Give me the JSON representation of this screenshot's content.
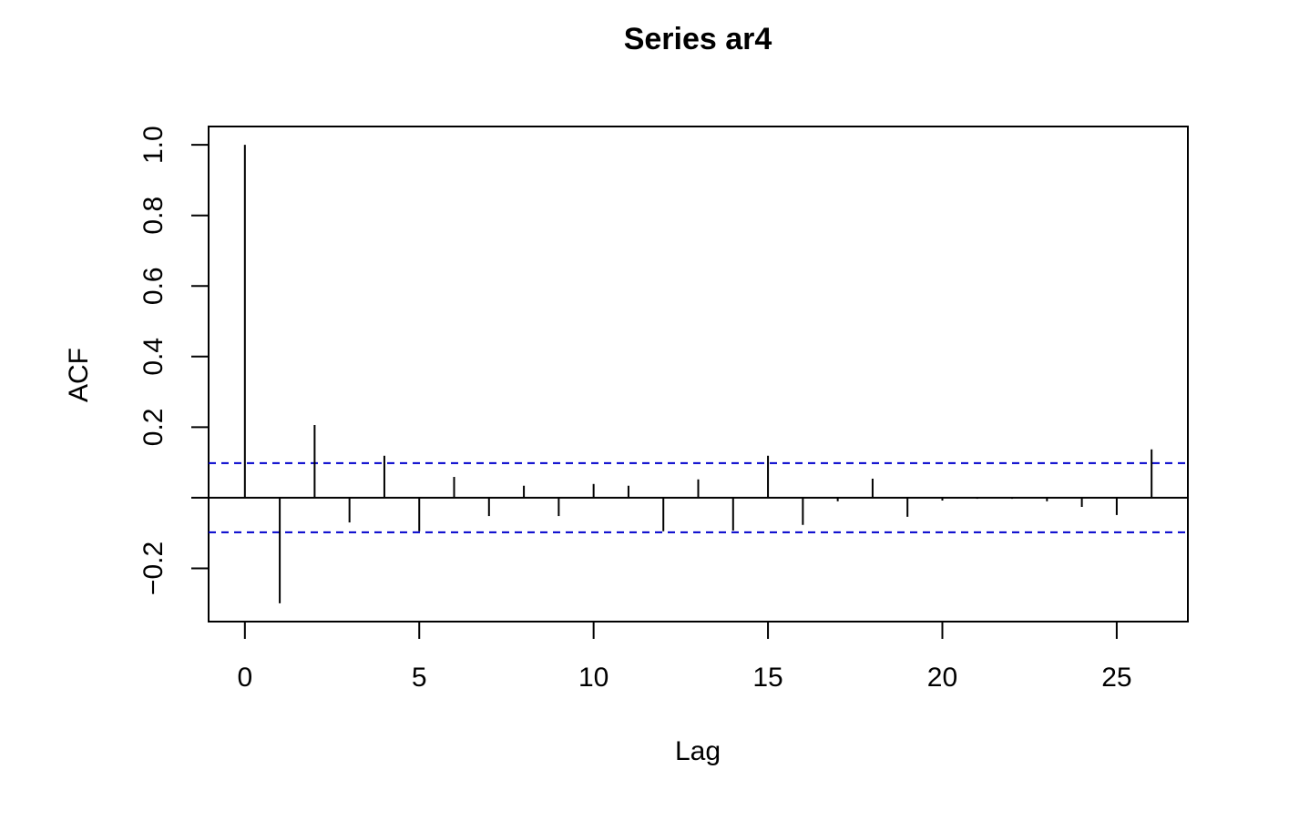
{
  "chart_data": {
    "type": "acf",
    "title": "Series  ar4",
    "x_label": "Lag",
    "y_label": "ACF",
    "x": [
      0,
      1,
      2,
      3,
      4,
      5,
      6,
      7,
      8,
      9,
      10,
      11,
      12,
      13,
      14,
      15,
      16,
      17,
      18,
      19,
      20,
      21,
      22,
      23,
      24,
      25,
      26
    ],
    "values": [
      1.0,
      -0.299,
      0.206,
      -0.07,
      0.119,
      -0.095,
      0.059,
      -0.052,
      0.034,
      -0.052,
      0.039,
      0.034,
      -0.095,
      0.052,
      -0.093,
      0.119,
      -0.077,
      -0.01,
      0.054,
      -0.054,
      -0.008,
      -0.003,
      -0.003,
      -0.01,
      -0.026,
      -0.049,
      0.137
    ],
    "color": "#000000",
    "conf_lines": [
      0.098,
      -0.098
    ],
    "conf_color": "#0000cc",
    "xlim": [
      -1.04,
      27.04
    ],
    "ylim": [
      -0.351,
      1.052
    ],
    "xticks": [
      0,
      5,
      10,
      15,
      20,
      25
    ],
    "yticks": [
      {
        "value": -0.2,
        "label": "−0.2"
      },
      0.2,
      0.4,
      0.6,
      0.8,
      {
        "value": 1.0,
        "label": "1.0"
      }
    ]
  }
}
